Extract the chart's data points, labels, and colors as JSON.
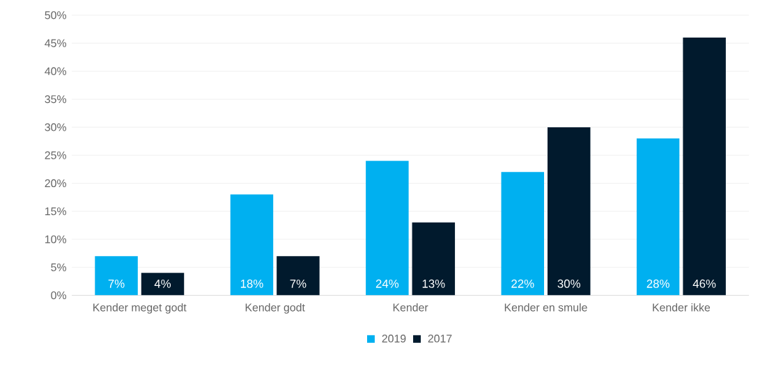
{
  "chart_data": {
    "type": "bar",
    "categories": [
      "Kender meget godt",
      "Kender godt",
      "Kender",
      "Kender en smule",
      "Kender ikke"
    ],
    "series": [
      {
        "name": "2019",
        "color": "#00b0f0",
        "values": [
          7,
          18,
          24,
          22,
          28
        ],
        "value_labels": [
          "7%",
          "18%",
          "24%",
          "22%",
          "28%"
        ]
      },
      {
        "name": "2017",
        "color": "#011a2d",
        "values": [
          4,
          7,
          13,
          30,
          46
        ],
        "value_labels": [
          "4%",
          "7%",
          "13%",
          "30%",
          "46%"
        ]
      }
    ],
    "ylim": [
      0,
      50
    ],
    "yticks": [
      {
        "value": 0,
        "label": "0%"
      },
      {
        "value": 5,
        "label": "5%"
      },
      {
        "value": 10,
        "label": "10%"
      },
      {
        "value": 15,
        "label": "15%"
      },
      {
        "value": 20,
        "label": "20%"
      },
      {
        "value": 25,
        "label": "25%"
      },
      {
        "value": 30,
        "label": "30%"
      },
      {
        "value": 35,
        "label": "35%"
      },
      {
        "value": 40,
        "label": "40%"
      },
      {
        "value": 45,
        "label": "45%"
      },
      {
        "value": 50,
        "label": "50%"
      }
    ],
    "grid": "y",
    "legend": "bottom"
  }
}
